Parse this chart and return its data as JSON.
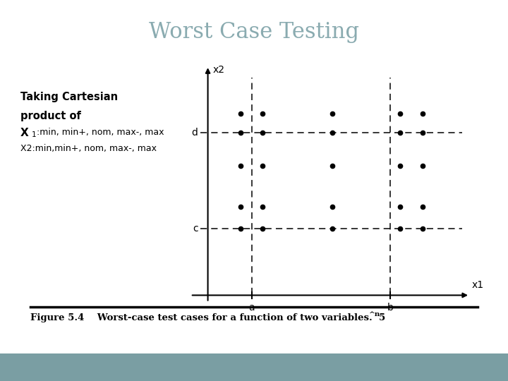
{
  "title": "Worst Case Testing",
  "title_color": "#8aabb0",
  "title_fontsize": 22,
  "slide_bg": "#ffffff",
  "bottom_bar_color": "#7a9ea3",
  "left_text_bold1": "Taking Cartesian",
  "left_text_bold2": "product of",
  "left_text_x1": "X",
  "left_text_x1_sub": "1",
  "left_text_x1_rest": ":min, min+, nom, max-, max",
  "left_text_x2": "X2:min,min+, nom, max-, max",
  "x1_label": "x1",
  "x2_label": "x2",
  "label_a": "a",
  "label_b": "b",
  "label_c": "c",
  "label_d": "d",
  "caption_main": "Figure 5.4    Worst-case test cases for a function of two variables.  5",
  "caption_sup": "^n",
  "x1_pts": [
    0.65,
    1.1,
    2.5,
    3.85,
    4.3
  ],
  "x2_pts": [
    1.0,
    1.45,
    2.3,
    3.0,
    3.4
  ],
  "a_x": 0.88,
  "b_x": 3.65,
  "c_y": 1.0,
  "d_y": 3.0,
  "xlim": [
    -0.5,
    5.3
  ],
  "ylim": [
    -0.6,
    4.5
  ]
}
